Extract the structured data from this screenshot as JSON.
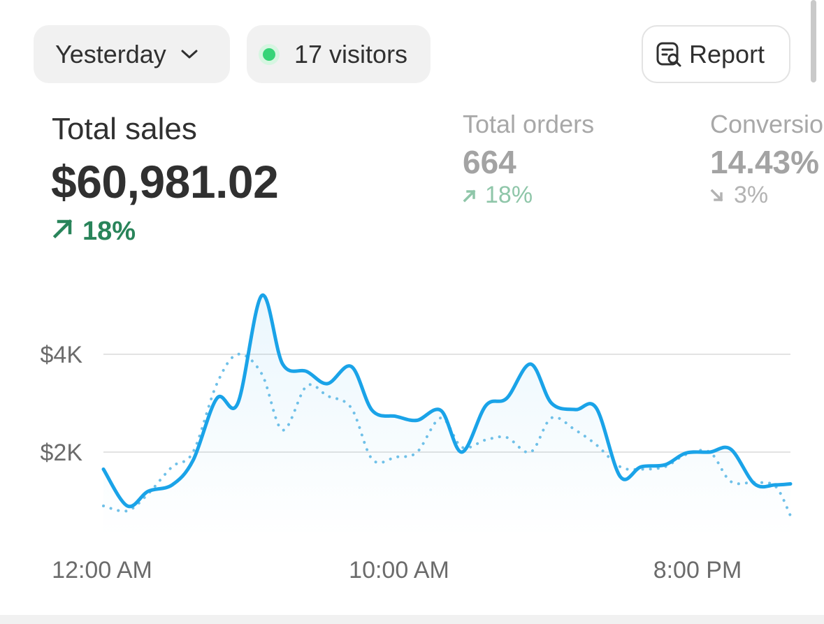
{
  "controls": {
    "date_range": "Yesterday",
    "visitors": "17 visitors",
    "report_label": "Report"
  },
  "metrics": [
    {
      "label": "Total sales",
      "value": "$60,981.02",
      "change": "18%",
      "direction": "up"
    },
    {
      "label": "Total orders",
      "value": "664",
      "change": "18%",
      "direction": "up"
    },
    {
      "label": "Conversion",
      "value": "14.43%",
      "change": "3%",
      "direction": "down"
    }
  ],
  "colors": {
    "accent": "#1aa3e8",
    "positive": "#29845a",
    "live_dot": "#36d477"
  },
  "chart_data": {
    "type": "line",
    "x_labels": [
      "12:00 AM",
      "10:00 AM",
      "8:00 PM"
    ],
    "x_range": [
      0,
      23
    ],
    "y_ticks": [
      {
        "value": 2000,
        "label": "$2K"
      },
      {
        "value": 4000,
        "label": "$4K"
      }
    ],
    "ylim": [
      0,
      5500
    ],
    "grid": true,
    "series": [
      {
        "style": "solid",
        "color": "#1aa3e8",
        "x": [
          0,
          0.8,
          1.5,
          2.3,
          3,
          3.8,
          4.5,
          5.3,
          6,
          6.8,
          7.5,
          8.3,
          9,
          9.8,
          10.5,
          11.3,
          12,
          12.8,
          13.5,
          14.3,
          15,
          15.8,
          16.5,
          17.3,
          18,
          18.8,
          19.5,
          20.3,
          21,
          21.8,
          22.5,
          23
        ],
        "values": [
          1650,
          900,
          1200,
          1330,
          1830,
          3100,
          3000,
          5200,
          3800,
          3650,
          3400,
          3750,
          2850,
          2730,
          2650,
          2850,
          2000,
          2950,
          3100,
          3800,
          3000,
          2870,
          2900,
          1500,
          1700,
          1740,
          1980,
          2000,
          2060,
          1350,
          1330,
          1350
        ]
      },
      {
        "style": "dotted",
        "color": "#6fc0e8",
        "x": [
          0,
          0.8,
          1.5,
          2.3,
          3,
          3.8,
          4.5,
          5.3,
          6,
          6.8,
          7.5,
          8.3,
          9,
          9.8,
          10.5,
          11.3,
          12,
          12.8,
          13.5,
          14.3,
          15,
          15.8,
          16.5,
          17.3,
          18,
          18.8,
          19.5,
          20.3,
          21,
          21.8,
          22.5,
          23
        ],
        "values": [
          900,
          800,
          1150,
          1700,
          2000,
          3400,
          4000,
          3600,
          2450,
          3350,
          3150,
          2900,
          1850,
          1900,
          2000,
          2700,
          2100,
          2250,
          2300,
          2000,
          2700,
          2450,
          2150,
          1700,
          1650,
          1700,
          1950,
          2000,
          1400,
          1380,
          1300,
          700
        ]
      }
    ]
  }
}
